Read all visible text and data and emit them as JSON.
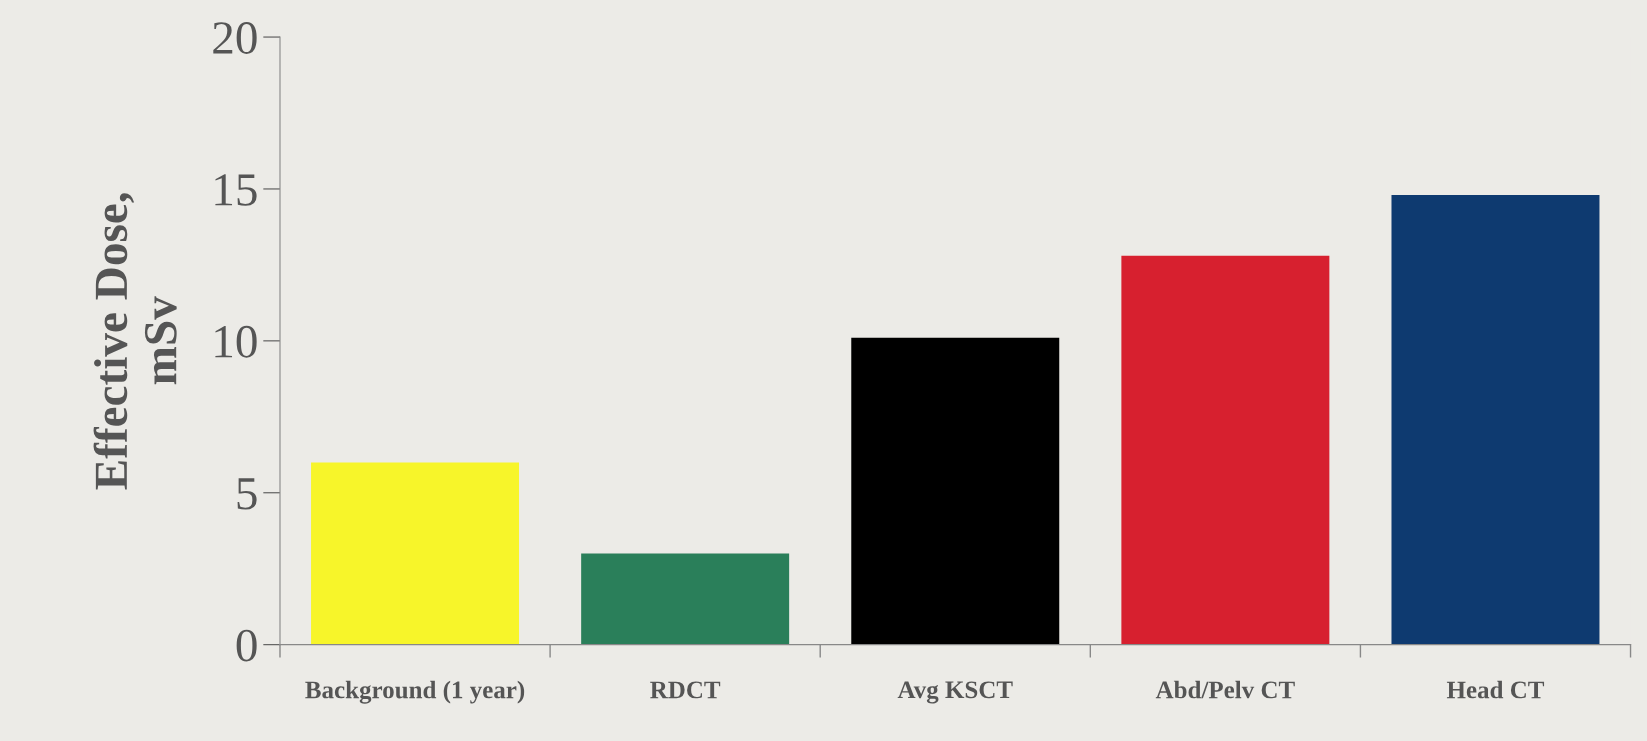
{
  "chart_data": {
    "type": "bar",
    "ylabel": "Effective Dose,\nmSv",
    "categories": [
      "Background (1 year)",
      "RDCT",
      "Avg KSCT",
      "Abd/Pelv CT",
      "Head CT"
    ],
    "values": [
      6.0,
      3.0,
      10.1,
      12.8,
      14.8
    ],
    "colors": [
      "#f7f52a",
      "#2a7f5a",
      "#000000",
      "#d7202f",
      "#0e3a70"
    ],
    "ylim": [
      0,
      20
    ],
    "yticks": [
      0,
      5,
      10,
      15,
      20
    ],
    "grid": false,
    "legend": false
  }
}
